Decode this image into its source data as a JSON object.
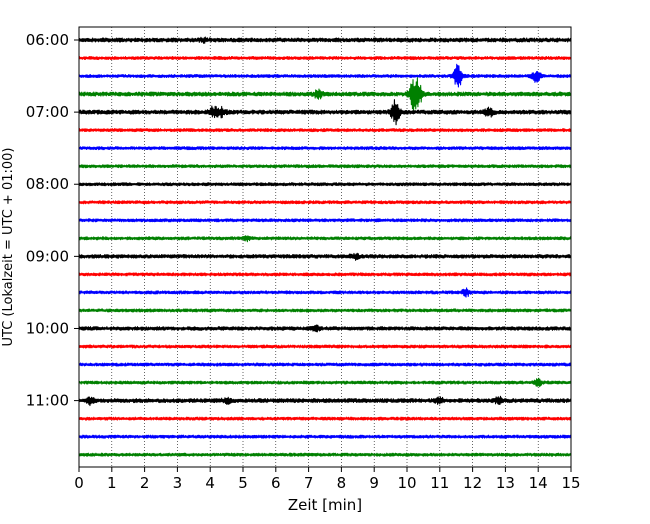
{
  "chart_data": {
    "type": "line",
    "title": "",
    "xlabel": "Zeit  [min]",
    "ylabel": "UTC (Lokalzeit = UTC + 01:00)",
    "xlim": [
      0,
      15
    ],
    "x_ticks": [
      0,
      1,
      2,
      3,
      4,
      5,
      6,
      7,
      8,
      9,
      10,
      11,
      12,
      13,
      14,
      15
    ],
    "x_tick_labels": [
      "0",
      "1",
      "2",
      "3",
      "4",
      "5",
      "6",
      "7",
      "8",
      "9",
      "10",
      "11",
      "12",
      "13",
      "14",
      "15"
    ],
    "y_tick_labels": [
      "06:00",
      "07:00",
      "08:00",
      "09:00",
      "10:00",
      "11:00"
    ],
    "vertical_grid": "dotted",
    "color_cycle": [
      "#000000",
      "#ff0000",
      "#0000ff",
      "#008000"
    ],
    "traces": [
      {
        "start": "06:00",
        "color": "#000000",
        "amplitude": 2,
        "events": [
          {
            "minute": 3.8,
            "peak": 1.5
          }
        ]
      },
      {
        "start": "06:15",
        "color": "#ff0000",
        "amplitude": 1.5,
        "events": []
      },
      {
        "start": "06:30",
        "color": "#0000ff",
        "amplitude": 1.5,
        "events": [
          {
            "minute": 11.55,
            "peak": 13
          },
          {
            "minute": 13.95,
            "peak": 6
          }
        ]
      },
      {
        "start": "06:45",
        "color": "#008000",
        "amplitude": 2,
        "events": [
          {
            "minute": 7.3,
            "peak": 4
          },
          {
            "minute": 10.2,
            "peak": 13
          },
          {
            "minute": 10.35,
            "peak": 10
          }
        ]
      },
      {
        "start": "07:00",
        "color": "#000000",
        "amplitude": 2,
        "events": [
          {
            "minute": 4.1,
            "peak": 5
          },
          {
            "minute": 4.35,
            "peak": 4
          },
          {
            "minute": 9.65,
            "peak": 12
          },
          {
            "minute": 12.5,
            "peak": 4
          }
        ]
      },
      {
        "start": "07:15",
        "color": "#ff0000",
        "amplitude": 1.5,
        "events": []
      },
      {
        "start": "07:30",
        "color": "#0000ff",
        "amplitude": 1.5,
        "events": []
      },
      {
        "start": "07:45",
        "color": "#008000",
        "amplitude": 1.5,
        "events": []
      },
      {
        "start": "08:00",
        "color": "#000000",
        "amplitude": 1.5,
        "events": []
      },
      {
        "start": "08:15",
        "color": "#ff0000",
        "amplitude": 1.5,
        "events": []
      },
      {
        "start": "08:30",
        "color": "#0000ff",
        "amplitude": 1.5,
        "events": []
      },
      {
        "start": "08:45",
        "color": "#008000",
        "amplitude": 1.5,
        "events": [
          {
            "minute": 5.1,
            "peak": 2.5
          }
        ]
      },
      {
        "start": "09:00",
        "color": "#000000",
        "amplitude": 1.8,
        "events": [
          {
            "minute": 8.4,
            "peak": 2.5
          }
        ]
      },
      {
        "start": "09:15",
        "color": "#ff0000",
        "amplitude": 1.5,
        "events": []
      },
      {
        "start": "09:30",
        "color": "#0000ff",
        "amplitude": 1.5,
        "events": [
          {
            "minute": 11.8,
            "peak": 3.5
          }
        ]
      },
      {
        "start": "09:45",
        "color": "#008000",
        "amplitude": 1.5,
        "events": []
      },
      {
        "start": "10:00",
        "color": "#000000",
        "amplitude": 1.8,
        "events": [
          {
            "minute": 7.2,
            "peak": 2.5
          }
        ]
      },
      {
        "start": "10:15",
        "color": "#ff0000",
        "amplitude": 1.5,
        "events": []
      },
      {
        "start": "10:30",
        "color": "#0000ff",
        "amplitude": 1.5,
        "events": []
      },
      {
        "start": "10:45",
        "color": "#008000",
        "amplitude": 1.5,
        "events": [
          {
            "minute": 14.0,
            "peak": 3
          }
        ]
      },
      {
        "start": "11:00",
        "color": "#000000",
        "amplitude": 2,
        "events": [
          {
            "minute": 0.35,
            "peak": 3
          },
          {
            "minute": 4.5,
            "peak": 2.5
          },
          {
            "minute": 11.0,
            "peak": 2.5
          },
          {
            "minute": 12.8,
            "peak": 3
          }
        ]
      },
      {
        "start": "11:15",
        "color": "#ff0000",
        "amplitude": 1.5,
        "events": []
      },
      {
        "start": "11:30",
        "color": "#0000ff",
        "amplitude": 1.5,
        "events": []
      },
      {
        "start": "11:45",
        "color": "#008000",
        "amplitude": 1.5,
        "events": []
      }
    ]
  }
}
